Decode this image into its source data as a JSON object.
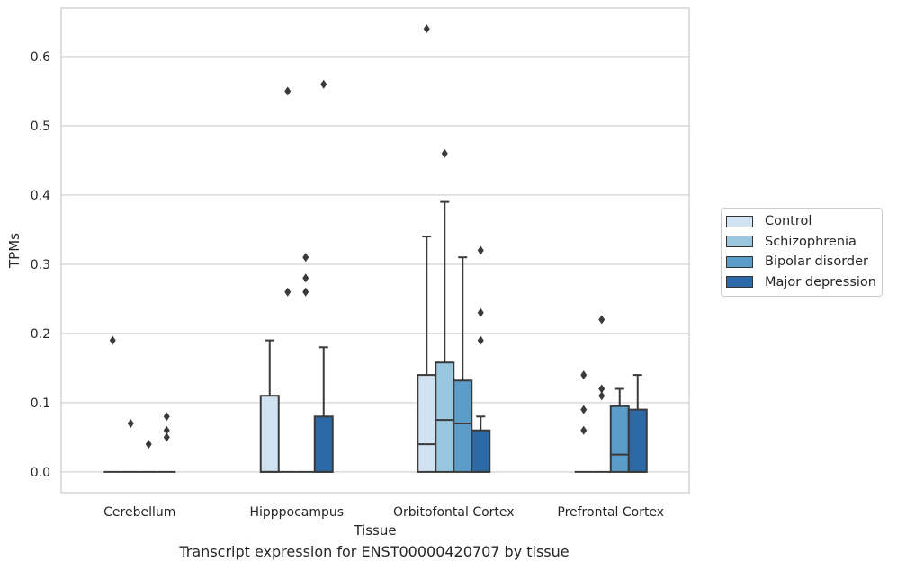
{
  "chart_data": {
    "type": "box",
    "title": "",
    "caption": "Transcript expression for ENST00000420707 by tissue",
    "xlabel": "Tissue",
    "ylabel": "TPMs",
    "ylim": [
      -0.03,
      0.67
    ],
    "yticks": [
      "0.0",
      "0.1",
      "0.2",
      "0.3",
      "0.4",
      "0.5",
      "0.6"
    ],
    "grid": "horizontal",
    "legend_position": "right",
    "categories": [
      "Cerebellum",
      "Hipppocampus",
      "Orbitofontal Cortex",
      "Prefrontal Cortex"
    ],
    "series": [
      {
        "name": "Control",
        "color": "#d1e2f2",
        "boxes": [
          {
            "q1": 0,
            "median": 0,
            "q3": 0,
            "whisker_low": 0,
            "whisker_high": 0,
            "outliers": [
              0.19
            ]
          },
          {
            "q1": 0,
            "median": 0,
            "q3": 0.11,
            "whisker_low": 0,
            "whisker_high": 0.19,
            "outliers": []
          },
          {
            "q1": 0,
            "median": 0.04,
            "q3": 0.14,
            "whisker_low": 0,
            "whisker_high": 0.34,
            "outliers": [
              0.64
            ]
          },
          {
            "q1": 0,
            "median": 0,
            "q3": 0,
            "whisker_low": 0,
            "whisker_high": 0,
            "outliers": [
              0.06,
              0.09,
              0.14
            ]
          }
        ]
      },
      {
        "name": "Schizophrenia",
        "color": "#9ac7e0",
        "boxes": [
          {
            "q1": 0,
            "median": 0,
            "q3": 0,
            "whisker_low": 0,
            "whisker_high": 0,
            "outliers": [
              0.07
            ]
          },
          {
            "q1": 0,
            "median": 0,
            "q3": 0,
            "whisker_low": 0,
            "whisker_high": 0,
            "outliers": [
              0.26,
              0.55
            ]
          },
          {
            "q1": 0,
            "median": 0.075,
            "q3": 0.158,
            "whisker_low": 0,
            "whisker_high": 0.39,
            "outliers": [
              0.46
            ]
          },
          {
            "q1": 0,
            "median": 0,
            "q3": 0,
            "whisker_low": 0,
            "whisker_high": 0,
            "outliers": [
              0.11,
              0.12,
              0.22
            ]
          }
        ]
      },
      {
        "name": "Bipolar disorder",
        "color": "#5b9cc9",
        "boxes": [
          {
            "q1": 0,
            "median": 0,
            "q3": 0,
            "whisker_low": 0,
            "whisker_high": 0,
            "outliers": [
              0.04
            ]
          },
          {
            "q1": 0,
            "median": 0,
            "q3": 0,
            "whisker_low": 0,
            "whisker_high": 0,
            "outliers": [
              0.26,
              0.28,
              0.31
            ]
          },
          {
            "q1": 0,
            "median": 0.07,
            "q3": 0.132,
            "whisker_low": 0,
            "whisker_high": 0.31,
            "outliers": []
          },
          {
            "q1": 0,
            "median": 0.025,
            "q3": 0.095,
            "whisker_low": 0,
            "whisker_high": 0.12,
            "outliers": []
          }
        ]
      },
      {
        "name": "Major depression",
        "color": "#2b6aa6",
        "boxes": [
          {
            "q1": 0,
            "median": 0,
            "q3": 0,
            "whisker_low": 0,
            "whisker_high": 0,
            "outliers": [
              0.05,
              0.06,
              0.08
            ]
          },
          {
            "q1": 0,
            "median": 0,
            "q3": 0.08,
            "whisker_low": 0,
            "whisker_high": 0.18,
            "outliers": [
              0.56
            ]
          },
          {
            "q1": 0,
            "median": 0,
            "q3": 0.06,
            "whisker_low": 0,
            "whisker_high": 0.08,
            "outliers": [
              0.19,
              0.23,
              0.32
            ]
          },
          {
            "q1": 0,
            "median": 0,
            "q3": 0.09,
            "whisker_low": 0,
            "whisker_high": 0.14,
            "outliers": []
          }
        ]
      }
    ]
  }
}
